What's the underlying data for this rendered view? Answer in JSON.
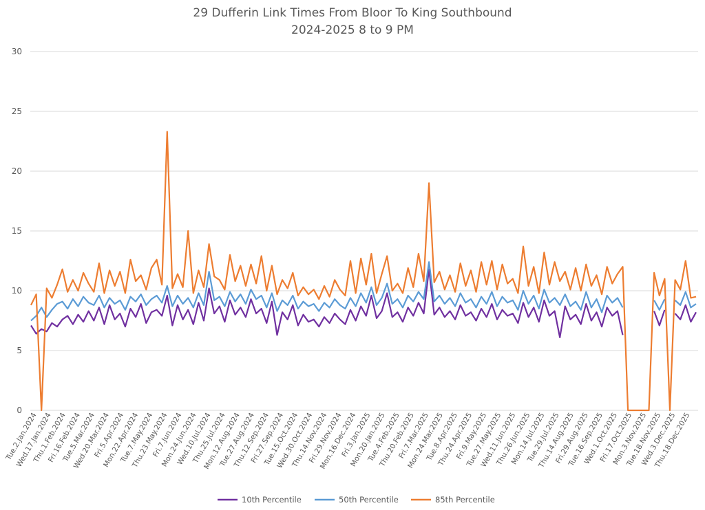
{
  "chart_data": {
    "type": "line",
    "title": "29 Dufferin Link Times From Bloor To King Southbound",
    "subtitle": "2024-2025 8 to 9 PM",
    "xlabel": "",
    "ylabel": "",
    "ylim": [
      0,
      30
    ],
    "yticks": [
      0,
      5,
      10,
      15,
      20,
      25,
      30
    ],
    "grid": true,
    "legend_position": "bottom",
    "x_tick_labels": [
      "Tue.2.Jan.2024",
      "Wed.17.Jan.2024",
      "Thu.1.Feb.2024",
      "Fri.16.Feb.2024",
      "Tue.5.Mar.2024",
      "Wed.20.Mar.2024",
      "Fri.5.Apr.2024",
      "Mon.22.Apr.2024",
      "Tue.7.May.2024",
      "Thu.23.May.2024",
      "Fri.7.Jun.2024",
      "Mon.24.Jun.2024",
      "Wed.10.Jul.2024",
      "Thu.25.Jul.2024",
      "Mon.12.Aug.2024",
      "Tue.27.Aug.2024",
      "Thu.12.Sep.2024",
      "Fri.27.Sep.2024",
      "Tue.15.Oct.2024",
      "Wed.30.Oct.2024",
      "Thu.14.Nov.2024",
      "Fri.29.Nov.2024",
      "Mon.16.Dec.2024",
      "Fri.3.Jan.2025",
      "Mon.20.Jan.2025",
      "Tue.4.Feb.2025",
      "Thu.20.Feb.2025",
      "Fri.7.Mar.2025",
      "Mon.24.Mar.2025",
      "Tue.8.Apr.2025",
      "Thu.24.Apr.2025",
      "Fri.9.May.2025",
      "Tue.27.May.2025",
      "Wed.11.Jun.2025",
      "Thu.26.Jun.2025",
      "Mon.14.Jul.2025",
      "Tue.29.Jul.2025",
      "Thu.14.Aug.2025",
      "Fri.29.Aug.2025",
      "Tue.16.Sep.2025",
      "Wed.1.Oct.2025",
      "Fri.17.Oct.2025",
      "Mon.3.Nov.2025",
      "Tue.18.Nov.2025",
      "Wed.3.Dec.2025",
      "Thu.18.Dec.2025"
    ],
    "x_count": 128,
    "series": [
      {
        "name": "10th Percentile",
        "color": "#7030A0",
        "values": [
          7.1,
          6.4,
          6.8,
          6.6,
          7.3,
          7.0,
          7.6,
          7.9,
          7.2,
          8.0,
          7.4,
          8.3,
          7.5,
          8.6,
          7.2,
          8.8,
          7.6,
          8.1,
          7.0,
          8.5,
          7.8,
          8.9,
          7.3,
          8.2,
          8.4,
          7.9,
          9.6,
          7.1,
          8.8,
          7.6,
          8.4,
          7.2,
          9.0,
          7.5,
          10.2,
          8.1,
          8.7,
          7.4,
          9.2,
          8.0,
          8.6,
          7.8,
          9.3,
          8.1,
          8.5,
          7.3,
          9.1,
          6.3,
          8.2,
          7.6,
          8.8,
          7.1,
          8.0,
          7.4,
          7.6,
          7.0,
          7.8,
          7.3,
          8.1,
          7.6,
          7.2,
          8.4,
          7.5,
          8.7,
          7.9,
          9.6,
          7.7,
          8.3,
          9.8,
          7.8,
          8.2,
          7.4,
          8.6,
          7.9,
          9.0,
          8.1,
          11.8,
          8.0,
          8.6,
          7.8,
          8.3,
          7.6,
          8.8,
          7.9,
          8.2,
          7.5,
          8.5,
          7.8,
          8.9,
          7.6,
          8.4,
          7.9,
          8.1,
          7.3,
          9.0,
          7.8,
          8.6,
          7.4,
          9.2,
          7.9,
          8.3,
          6.1,
          8.7,
          7.6,
          8.0,
          7.2,
          8.9,
          7.5,
          8.2,
          7.0,
          8.6,
          7.9,
          8.3,
          6.3,
          null,
          null,
          null,
          null,
          null,
          8.3,
          7.1,
          8.4,
          null,
          8.1,
          7.6,
          8.8,
          7.4,
          8.2
        ],
        "note": "values approximate; gap during Oct 2025"
      },
      {
        "name": "50th Percentile",
        "color": "#5B9BD5",
        "values": [
          7.5,
          7.9,
          8.6,
          7.8,
          8.4,
          8.9,
          9.1,
          8.5,
          9.3,
          8.7,
          9.5,
          9.0,
          8.8,
          9.6,
          8.6,
          9.4,
          8.9,
          9.2,
          8.4,
          9.5,
          9.1,
          9.7,
          8.8,
          9.3,
          9.6,
          9.0,
          10.4,
          8.7,
          9.6,
          8.9,
          9.4,
          8.6,
          9.8,
          8.8,
          11.6,
          9.2,
          9.5,
          8.7,
          9.9,
          9.1,
          9.7,
          8.9,
          10.1,
          9.3,
          9.6,
          8.6,
          9.8,
          8.3,
          9.2,
          8.8,
          9.6,
          8.5,
          9.1,
          8.7,
          8.9,
          8.3,
          9.0,
          8.6,
          9.3,
          8.8,
          8.5,
          9.4,
          8.7,
          9.8,
          9.0,
          10.3,
          8.8,
          9.4,
          10.6,
          8.9,
          9.3,
          8.6,
          9.6,
          9.1,
          9.9,
          9.3,
          12.4,
          9.1,
          9.6,
          8.9,
          9.4,
          8.7,
          9.8,
          9.0,
          9.3,
          8.6,
          9.5,
          8.9,
          9.9,
          8.7,
          9.5,
          9.0,
          9.2,
          8.4,
          10.0,
          8.9,
          9.6,
          8.5,
          10.1,
          9.0,
          9.4,
          8.8,
          9.7,
          8.7,
          9.1,
          8.4,
          9.9,
          8.6,
          9.3,
          8.2,
          9.6,
          9.0,
          9.4,
          8.6,
          null,
          null,
          null,
          null,
          null,
          9.2,
          8.4,
          9.3,
          null,
          9.2,
          8.8,
          9.9,
          8.6,
          8.9
        ]
      },
      {
        "name": "85th Percentile",
        "color": "#ED7D31",
        "values": [
          8.8,
          9.7,
          0,
          10.2,
          9.4,
          10.5,
          11.8,
          9.9,
          10.9,
          10.0,
          11.5,
          10.6,
          9.9,
          12.3,
          9.8,
          11.7,
          10.4,
          11.6,
          9.8,
          12.6,
          10.8,
          11.3,
          10.1,
          11.9,
          12.6,
          10.5,
          23.3,
          10.2,
          11.4,
          10.3,
          15.0,
          9.8,
          11.7,
          10.3,
          13.9,
          11.2,
          10.9,
          10.1,
          13.0,
          10.8,
          12.1,
          10.4,
          12.2,
          10.6,
          12.9,
          10.0,
          12.1,
          9.7,
          10.9,
          10.2,
          11.5,
          9.6,
          10.3,
          9.7,
          10.1,
          9.3,
          10.4,
          9.5,
          10.9,
          10.1,
          9.6,
          12.5,
          9.8,
          12.7,
          10.5,
          13.1,
          9.8,
          11.4,
          12.9,
          10.0,
          10.6,
          9.8,
          11.9,
          10.3,
          13.1,
          10.8,
          19.0,
          10.7,
          11.6,
          10.1,
          11.3,
          9.9,
          12.3,
          10.4,
          11.7,
          9.9,
          12.4,
          10.5,
          12.5,
          10.1,
          12.2,
          10.6,
          11.0,
          9.8,
          13.7,
          10.4,
          12.0,
          9.8,
          13.2,
          10.5,
          12.4,
          10.8,
          11.6,
          10.1,
          11.9,
          10.0,
          12.2,
          10.4,
          11.3,
          9.7,
          12.0,
          10.6,
          11.4,
          12.0,
          0,
          0,
          0,
          0,
          0,
          11.5,
          9.6,
          11.0,
          0,
          10.9,
          10.1,
          12.5,
          9.4,
          9.5
        ]
      }
    ]
  },
  "legend": {
    "items": [
      "10th Percentile",
      "50th Percentile",
      "85th Percentile"
    ]
  }
}
